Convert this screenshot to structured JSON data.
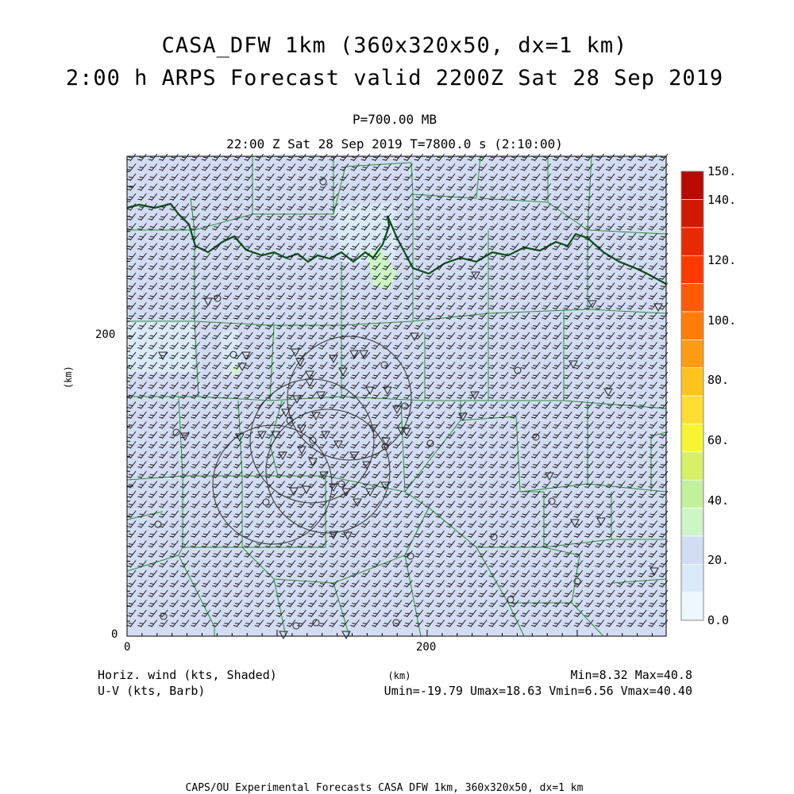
{
  "title": {
    "line1": "CASA_DFW 1km (360x320x50, dx=1 km)",
    "line2": "2:00 h ARPS Forecast valid 2200Z Sat 28 Sep 2019"
  },
  "subtitle": {
    "level": "P=700.00 MB",
    "time": "22:00 Z Sat 28 Sep 2019   T=7800.0 s (2:10:00)"
  },
  "axes": {
    "x_ticks": [
      "0",
      "200"
    ],
    "y_ticks": [
      "0",
      "200"
    ],
    "x_unit": "(km)",
    "y_unit": "(km)"
  },
  "colorbar": {
    "labels": [
      "0.0",
      "20.",
      "40.",
      "60.",
      "80.",
      "100.",
      "120.",
      "140.",
      "150."
    ],
    "colors": [
      "#eef7fd",
      "#dbeaf8",
      "#d2dcf3",
      "#cdf5c6",
      "#c2f09c",
      "#d6f06a",
      "#f7f533",
      "#ffdd33",
      "#ffc21f",
      "#ff9c14",
      "#ff7b0a",
      "#ff5a05",
      "#ff3a00",
      "#e82a00",
      "#d01a00",
      "#b80a00"
    ]
  },
  "footer": {
    "left1": "Horiz. wind (kts, Shaded)",
    "left2": "U-V (kts, Barb)",
    "right1": "Min=8.32 Max=40.8",
    "right2": "Umin=-19.79 Umax=18.63 Vmin=6.56 Vmax=40.40",
    "center": "(km)",
    "credit": "CAPS/OU Experimental Forecasts  CASA DFW 1km, 360x320x50, dx=1 km"
  },
  "map_colors": {
    "shade_main": "#d2dcf3",
    "shade_light": "#dbeaf8",
    "shade_green": "#cdf5c6",
    "county": "#2e8b3a",
    "river": "#0b4f1a",
    "barb": "#1a1a1a",
    "radar_ring": "#333333"
  }
}
